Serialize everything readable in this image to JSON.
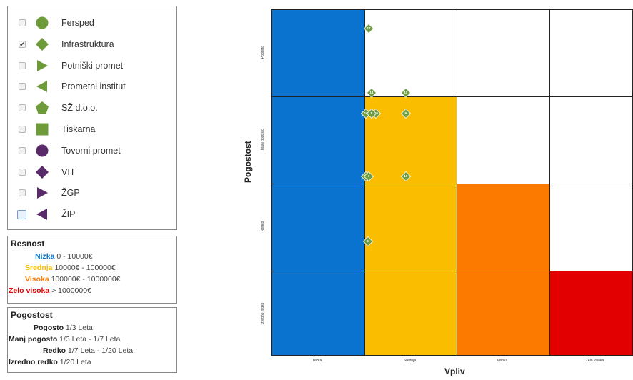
{
  "colors": {
    "nizka": "#0a73d0",
    "srednja": "#fbbd00",
    "visoka": "#fc7a00",
    "zelo_visoka": "#e30000",
    "legend_green": "#6e9b3a",
    "legend_purple": "#5a2b6b",
    "marker_fill": "#6f9e42"
  },
  "legend": {
    "items": [
      {
        "label": "Fersped",
        "icon": "circle-icon",
        "color": "#6e9b3a",
        "checked": false
      },
      {
        "label": "Infrastruktura",
        "icon": "diamond-icon",
        "color": "#6e9b3a",
        "checked": true
      },
      {
        "label": "Potniški promet",
        "icon": "triangle-right-icon",
        "color": "#6e9b3a",
        "checked": false
      },
      {
        "label": "Prometni institut",
        "icon": "triangle-left-icon",
        "color": "#6e9b3a",
        "checked": false
      },
      {
        "label": "SŽ d.o.o.",
        "icon": "pentagon-icon",
        "color": "#6e9b3a",
        "checked": false
      },
      {
        "label": "Tiskarna",
        "icon": "square-icon",
        "color": "#6e9b3a",
        "checked": false
      },
      {
        "label": "Tovorni promet",
        "icon": "circle-icon",
        "color": "#5a2b6b",
        "checked": false
      },
      {
        "label": "VIT",
        "icon": "diamond-icon",
        "color": "#5a2b6b",
        "checked": false
      },
      {
        "label": "ŽGP",
        "icon": "triangle-right-icon",
        "color": "#5a2b6b",
        "checked": false
      },
      {
        "label": "ŽIP",
        "icon": "triangle-left-icon",
        "color": "#5a2b6b",
        "checked": false
      }
    ]
  },
  "resnost": {
    "title": "Resnost",
    "rows": [
      {
        "name": "Nizka",
        "range": "0 - 10000€",
        "color": "#0a73d0"
      },
      {
        "name": "Srednja",
        "range": "10000€ - 100000€",
        "color": "#fbbd00"
      },
      {
        "name": "Visoka",
        "range": "100000€ - 1000000€",
        "color": "#fc7a00"
      },
      {
        "name": "Zelo visoka",
        "range": "> 1000000€",
        "color": "#e30000"
      }
    ]
  },
  "pogostost": {
    "title": "Pogostost",
    "rows": [
      {
        "name": "Pogosto",
        "range": "1/3 Leta"
      },
      {
        "name": "Manj pogosto",
        "range": "1/3 Leta - 1/7 Leta"
      },
      {
        "name": "Redko",
        "range": "1/7 Leta - 1/20 Leta"
      },
      {
        "name": "Izredno redko",
        "range": "1/20 Leta"
      }
    ]
  },
  "matrix": {
    "y_title": "Pogostost",
    "x_title": "Vpliv",
    "rows": [
      "Pogosto",
      "Manj pogosto",
      "Redko",
      "Izredno redko"
    ],
    "cols": [
      "Nizka",
      "Srednja",
      "Visoka",
      "Zelo visoka"
    ],
    "cell_colors": [
      [
        "#0a73d0",
        "#ffffff",
        "#ffffff",
        "#ffffff"
      ],
      [
        "#0a73d0",
        "#fbbd00",
        "#ffffff",
        "#ffffff"
      ],
      [
        "#0a73d0",
        "#fbbd00",
        "#fc7a00",
        "#ffffff"
      ],
      [
        "#0a73d0",
        "#fbbd00",
        "#fc7a00",
        "#e30000"
      ]
    ],
    "markers": [
      {
        "id": "17",
        "col": 1,
        "row": 0,
        "fx": 0.05,
        "fy": 0.22
      },
      {
        "id": "11",
        "col": 0,
        "row": 1,
        "fx": 0.45,
        "fy": -0.04
      },
      {
        "id": "14",
        "col": 1,
        "row": 1,
        "fx": 0.08,
        "fy": -0.04
      },
      {
        "id": "15",
        "col": 0,
        "row": 1,
        "fx": 0.02,
        "fy": 0.2
      },
      {
        "id": "13",
        "col": 0,
        "row": 1,
        "fx": 0.13,
        "fy": 0.2
      },
      {
        "id": "9",
        "col": 0,
        "row": 1,
        "fx": 0.45,
        "fy": 0.2
      },
      {
        "id": "16",
        "col": 1,
        "row": 1,
        "fx": 0.02,
        "fy": 0.2
      },
      {
        "id": "8",
        "col": 1,
        "row": 1,
        "fx": 0.08,
        "fy": 0.2
      },
      {
        "id": "12",
        "col": 0,
        "row": 1,
        "fx": 0.02,
        "fy": 0.92
      },
      {
        "id": "10",
        "col": 0,
        "row": 1,
        "fx": 0.45,
        "fy": 0.92
      },
      {
        "id": "7",
        "col": 1,
        "row": 1,
        "fx": 0.05,
        "fy": 0.92
      },
      {
        "id": "6",
        "col": 0,
        "row": 2,
        "fx": 0.04,
        "fy": 0.66
      }
    ]
  }
}
